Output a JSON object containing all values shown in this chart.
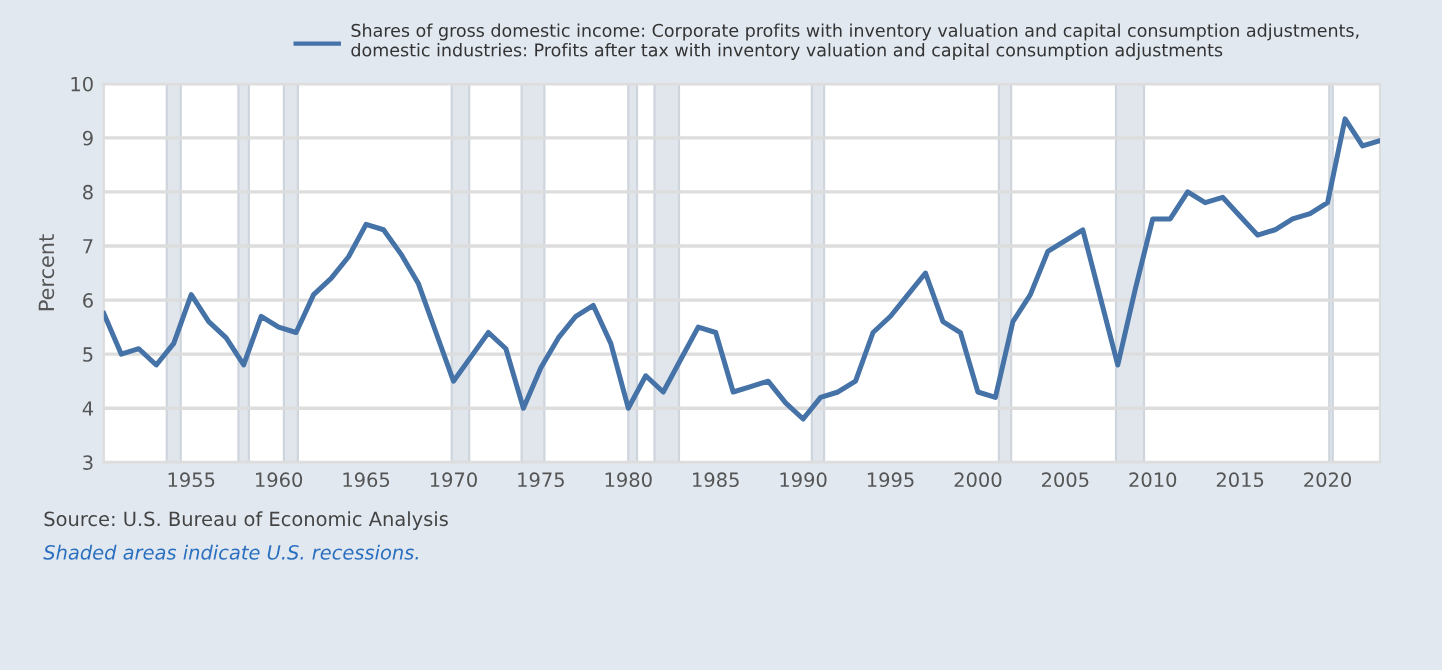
{
  "chart_data": {
    "type": "line",
    "series": [
      {
        "name": "Shares of gross domestic income: Corporate profits with inventory valuation and capital consumption adjustments, domestic industries: Profits after tax with inventory valuation and capital consumption adjustments",
        "color": "#4572a7",
        "x": [
          1950,
          1951,
          1952,
          1953,
          1954,
          1955,
          1956,
          1957,
          1958,
          1959,
          1960,
          1961,
          1962,
          1963,
          1964,
          1965,
          1966,
          1967,
          1968,
          1969,
          1970,
          1971,
          1972,
          1973,
          1974,
          1975,
          1976,
          1977,
          1978,
          1979,
          1980,
          1981,
          1982,
          1983,
          1984,
          1985,
          1986,
          1987,
          1988,
          1989,
          1990,
          1991,
          1992,
          1993,
          1994,
          1995,
          1996,
          1997,
          1998,
          1999,
          2000,
          2001,
          2002,
          2003,
          2004,
          2005,
          2006,
          2007,
          2008,
          2009,
          2010,
          2011,
          2012,
          2013,
          2014,
          2015,
          2016,
          2017,
          2018,
          2019,
          2020,
          2021,
          2022,
          2023
        ],
        "values": [
          5.75,
          5.0,
          5.1,
          4.8,
          5.2,
          6.1,
          5.6,
          5.3,
          4.8,
          5.7,
          5.5,
          5.4,
          6.1,
          6.4,
          6.8,
          7.4,
          7.3,
          6.85,
          6.3,
          5.4,
          4.5,
          4.95,
          5.4,
          5.1,
          4.0,
          4.75,
          5.3,
          5.7,
          5.9,
          5.2,
          4.0,
          4.6,
          4.3,
          4.9,
          5.5,
          5.4,
          4.3,
          4.4,
          4.5,
          4.1,
          3.8,
          4.2,
          4.3,
          4.5,
          5.4,
          5.7,
          6.1,
          6.5,
          5.6,
          5.4,
          4.3,
          4.2,
          5.6,
          6.1,
          6.9,
          7.1,
          7.3,
          6.05,
          4.8,
          6.2,
          7.5,
          7.5,
          8.0,
          7.8,
          7.9,
          7.55,
          7.2,
          7.3,
          7.5,
          7.6,
          7.8,
          9.35,
          8.85,
          8.95
        ]
      }
    ],
    "ylabel": "Percent",
    "xlim": [
      1950,
      2023
    ],
    "xticks": [
      1955,
      1960,
      1965,
      1970,
      1975,
      1980,
      1985,
      1990,
      1995,
      2000,
      2005,
      2010,
      2015,
      2020
    ],
    "ylim": [
      3,
      10
    ],
    "yticks": [
      3,
      4,
      5,
      6,
      7,
      8,
      9,
      10
    ],
    "grid": "y",
    "legend": "top",
    "bands": [
      {
        "axis": "x",
        "from": 1953.6,
        "to": 1954.4,
        "color": "#e1e6ed"
      },
      {
        "axis": "x",
        "from": 1957.7,
        "to": 1958.3,
        "color": "#e1e6ed"
      },
      {
        "axis": "x",
        "from": 1960.3,
        "to": 1961.1,
        "color": "#e1e6ed"
      },
      {
        "axis": "x",
        "from": 1969.9,
        "to": 1970.9,
        "color": "#e1e6ed"
      },
      {
        "axis": "x",
        "from": 1973.9,
        "to": 1975.2,
        "color": "#e1e6ed"
      },
      {
        "axis": "x",
        "from": 1980.0,
        "to": 1980.5,
        "color": "#e1e6ed"
      },
      {
        "axis": "x",
        "from": 1981.5,
        "to": 1982.9,
        "color": "#e1e6ed"
      },
      {
        "axis": "x",
        "from": 1990.5,
        "to": 1991.2,
        "color": "#e1e6ed"
      },
      {
        "axis": "x",
        "from": 2001.2,
        "to": 2001.9,
        "color": "#e1e6ed"
      },
      {
        "axis": "x",
        "from": 2007.9,
        "to": 2009.5,
        "color": "#e1e6ed"
      },
      {
        "axis": "x",
        "from": 2020.1,
        "to": 2020.3,
        "color": "#e1e6ed"
      }
    ],
    "annotations": [
      "Source: U.S. Bureau of Economic Analysis",
      "Shaded areas indicate U.S. recessions."
    ]
  }
}
